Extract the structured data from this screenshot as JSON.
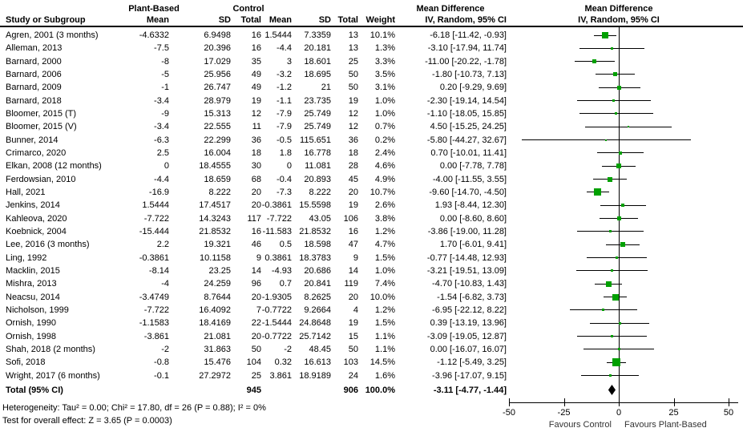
{
  "figure": {
    "header": {
      "group1": "Plant-Based",
      "group2": "Control",
      "study_col": "Study or Subgroup",
      "mean_col": "Mean",
      "sd_col": "SD",
      "total_col": "Total",
      "weight_col": "Weight",
      "effect_title": "Mean Difference",
      "effect_method": "IV, Random, 95% CI"
    }
  },
  "chart_data": {
    "type": "forest",
    "effect_measure": "Mean Difference",
    "model": "IV, Random, 95% CI",
    "colors": {
      "marker": "#00a000",
      "summary": "#000000",
      "line": "#000000"
    },
    "axis": {
      "xlim": [
        -50,
        50
      ],
      "ticks": [
        -50,
        -25,
        0,
        25,
        50
      ],
      "favours_left": "Favours Control",
      "favours_right": "Favours Plant-Based"
    },
    "studies": [
      {
        "name": "Agren, 2001 (3 months)",
        "mean1": "-4.6332",
        "sd1": "6.9498",
        "n1": "16",
        "mean2": "1.5444",
        "sd2": "7.3359",
        "n2": "13",
        "weight": "10.1%",
        "ci": "-6.18 [-11.42, -0.93]",
        "est": -6.18,
        "lo": -11.42,
        "hi": -0.93
      },
      {
        "name": "Alleman, 2013",
        "mean1": "-7.5",
        "sd1": "20.396",
        "n1": "16",
        "mean2": "-4.4",
        "sd2": "20.181",
        "n2": "13",
        "weight": "1.3%",
        "ci": "-3.10 [-17.94, 11.74]",
        "est": -3.1,
        "lo": -17.94,
        "hi": 11.74
      },
      {
        "name": "Barnard, 2000",
        "mean1": "-8",
        "sd1": "17.029",
        "n1": "35",
        "mean2": "3",
        "sd2": "18.601",
        "n2": "25",
        "weight": "3.3%",
        "ci": "-11.00 [-20.22, -1.78]",
        "est": -11.0,
        "lo": -20.22,
        "hi": -1.78
      },
      {
        "name": "Barnard, 2006",
        "mean1": "-5",
        "sd1": "25.956",
        "n1": "49",
        "mean2": "-3.2",
        "sd2": "18.695",
        "n2": "50",
        "weight": "3.5%",
        "ci": "-1.80 [-10.73, 7.13]",
        "est": -1.8,
        "lo": -10.73,
        "hi": 7.13
      },
      {
        "name": "Barnard, 2009",
        "mean1": "-1",
        "sd1": "26.747",
        "n1": "49",
        "mean2": "-1.2",
        "sd2": "21",
        "n2": "50",
        "weight": "3.1%",
        "ci": "0.20 [-9.29, 9.69]",
        "est": 0.2,
        "lo": -9.29,
        "hi": 9.69
      },
      {
        "name": "Barnard, 2018",
        "mean1": "-3.4",
        "sd1": "28.979",
        "n1": "19",
        "mean2": "-1.1",
        "sd2": "23.735",
        "n2": "19",
        "weight": "1.0%",
        "ci": "-2.30 [-19.14, 14.54]",
        "est": -2.3,
        "lo": -19.14,
        "hi": 14.54
      },
      {
        "name": "Bloomer, 2015 (T)",
        "mean1": "-9",
        "sd1": "15.313",
        "n1": "12",
        "mean2": "-7.9",
        "sd2": "25.749",
        "n2": "12",
        "weight": "1.0%",
        "ci": "-1.10 [-18.05, 15.85]",
        "est": -1.1,
        "lo": -18.05,
        "hi": 15.85
      },
      {
        "name": "Bloomer, 2015 (V)",
        "mean1": "-3.4",
        "sd1": "22.555",
        "n1": "11",
        "mean2": "-7.9",
        "sd2": "25.749",
        "n2": "12",
        "weight": "0.7%",
        "ci": "4.50 [-15.25, 24.25]",
        "est": 4.5,
        "lo": -15.25,
        "hi": 24.25
      },
      {
        "name": "Bunner, 2014",
        "mean1": "-6.3",
        "sd1": "22.299",
        "n1": "36",
        "mean2": "-0.5",
        "sd2": "115.651",
        "n2": "36",
        "weight": "0.2%",
        "ci": "-5.80 [-44.27, 32.67]",
        "est": -5.8,
        "lo": -44.27,
        "hi": 32.67
      },
      {
        "name": "Crimarco, 2020",
        "mean1": "2.5",
        "sd1": "16.004",
        "n1": "18",
        "mean2": "1.8",
        "sd2": "16.778",
        "n2": "18",
        "weight": "2.4%",
        "ci": "0.70 [-10.01, 11.41]",
        "est": 0.7,
        "lo": -10.01,
        "hi": 11.41
      },
      {
        "name": "Elkan, 2008 (12 months)",
        "mean1": "0",
        "sd1": "18.4555",
        "n1": "30",
        "mean2": "0",
        "sd2": "11.081",
        "n2": "28",
        "weight": "4.6%",
        "ci": "0.00 [-7.78, 7.78]",
        "est": 0.0,
        "lo": -7.78,
        "hi": 7.78
      },
      {
        "name": "Ferdowsian, 2010",
        "mean1": "-4.4",
        "sd1": "18.659",
        "n1": "68",
        "mean2": "-0.4",
        "sd2": "20.893",
        "n2": "45",
        "weight": "4.9%",
        "ci": "-4.00 [-11.55, 3.55]",
        "est": -4.0,
        "lo": -11.55,
        "hi": 3.55
      },
      {
        "name": "Hall, 2021",
        "mean1": "-16.9",
        "sd1": "8.222",
        "n1": "20",
        "mean2": "-7.3",
        "sd2": "8.222",
        "n2": "20",
        "weight": "10.7%",
        "ci": "-9.60 [-14.70, -4.50]",
        "est": -9.6,
        "lo": -14.7,
        "hi": -4.5
      },
      {
        "name": "Jenkins, 2014",
        "mean1": "1.5444",
        "sd1": "17.4517",
        "n1": "20",
        "mean2": "-0.3861",
        "sd2": "15.5598",
        "n2": "19",
        "weight": "2.6%",
        "ci": "1.93 [-8.44, 12.30]",
        "est": 1.93,
        "lo": -8.44,
        "hi": 12.3
      },
      {
        "name": "Kahleova, 2020",
        "mean1": "-7.722",
        "sd1": "14.3243",
        "n1": "117",
        "mean2": "-7.722",
        "sd2": "43.05",
        "n2": "106",
        "weight": "3.8%",
        "ci": "0.00 [-8.60, 8.60]",
        "est": 0.0,
        "lo": -8.6,
        "hi": 8.6
      },
      {
        "name": "Koebnick, 2004",
        "mean1": "-15.444",
        "sd1": "21.8532",
        "n1": "16",
        "mean2": "-11.583",
        "sd2": "21.8532",
        "n2": "16",
        "weight": "1.2%",
        "ci": "-3.86 [-19.00, 11.28]",
        "est": -3.86,
        "lo": -19.0,
        "hi": 11.28
      },
      {
        "name": "Lee, 2016 (3 months)",
        "mean1": "2.2",
        "sd1": "19.321",
        "n1": "46",
        "mean2": "0.5",
        "sd2": "18.598",
        "n2": "47",
        "weight": "4.7%",
        "ci": "1.70 [-6.01, 9.41]",
        "est": 1.7,
        "lo": -6.01,
        "hi": 9.41
      },
      {
        "name": "Ling, 1992",
        "mean1": "-0.3861",
        "sd1": "10.1158",
        "n1": "9",
        "mean2": "0.3861",
        "sd2": "18.3783",
        "n2": "9",
        "weight": "1.5%",
        "ci": "-0.77 [-14.48, 12.93]",
        "est": -0.77,
        "lo": -14.48,
        "hi": 12.93
      },
      {
        "name": "Macklin, 2015",
        "mean1": "-8.14",
        "sd1": "23.25",
        "n1": "14",
        "mean2": "-4.93",
        "sd2": "20.686",
        "n2": "14",
        "weight": "1.0%",
        "ci": "-3.21 [-19.51, 13.09]",
        "est": -3.21,
        "lo": -19.51,
        "hi": 13.09
      },
      {
        "name": "Mishra, 2013",
        "mean1": "-4",
        "sd1": "24.259",
        "n1": "96",
        "mean2": "0.7",
        "sd2": "20.841",
        "n2": "119",
        "weight": "7.4%",
        "ci": "-4.70 [-10.83, 1.43]",
        "est": -4.7,
        "lo": -10.83,
        "hi": 1.43
      },
      {
        "name": "Neacsu, 2014",
        "mean1": "-3.4749",
        "sd1": "8.7644",
        "n1": "20",
        "mean2": "-1.9305",
        "sd2": "8.2625",
        "n2": "20",
        "weight": "10.0%",
        "ci": "-1.54 [-6.82, 3.73]",
        "est": -1.54,
        "lo": -6.82,
        "hi": 3.73
      },
      {
        "name": "Nicholson, 1999",
        "mean1": "-7.722",
        "sd1": "16.4092",
        "n1": "7",
        "mean2": "-0.7722",
        "sd2": "9.2664",
        "n2": "4",
        "weight": "1.2%",
        "ci": "-6.95 [-22.12, 8.22]",
        "est": -6.95,
        "lo": -22.12,
        "hi": 8.22
      },
      {
        "name": "Ornish, 1990",
        "mean1": "-1.1583",
        "sd1": "18.4169",
        "n1": "22",
        "mean2": "-1.5444",
        "sd2": "24.8648",
        "n2": "19",
        "weight": "1.5%",
        "ci": "0.39 [-13.19, 13.96]",
        "est": 0.39,
        "lo": -13.19,
        "hi": 13.96
      },
      {
        "name": "Ornish, 1998",
        "mean1": "-3.861",
        "sd1": "21.081",
        "n1": "20",
        "mean2": "-0.7722",
        "sd2": "25.7142",
        "n2": "15",
        "weight": "1.1%",
        "ci": "-3.09 [-19.05, 12.87]",
        "est": -3.09,
        "lo": -19.05,
        "hi": 12.87
      },
      {
        "name": "Shah, 2018 (2 months)",
        "mean1": "-2",
        "sd1": "31.863",
        "n1": "50",
        "mean2": "-2",
        "sd2": "48.45",
        "n2": "50",
        "weight": "1.1%",
        "ci": "0.00 [-16.07, 16.07]",
        "est": 0.0,
        "lo": -16.07,
        "hi": 16.07
      },
      {
        "name": "Sofi, 2018",
        "mean1": "-0.8",
        "sd1": "15.476",
        "n1": "104",
        "mean2": "0.32",
        "sd2": "16.613",
        "n2": "103",
        "weight": "14.5%",
        "ci": "-1.12 [-5.49, 3.25]",
        "est": -1.12,
        "lo": -5.49,
        "hi": 3.25
      },
      {
        "name": "Wright, 2017 (6 months)",
        "mean1": "-0.1",
        "sd1": "27.2972",
        "n1": "25",
        "mean2": "3.861",
        "sd2": "18.9189",
        "n2": "24",
        "weight": "1.6%",
        "ci": "-3.96 [-17.07, 9.15]",
        "est": -3.96,
        "lo": -17.07,
        "hi": 9.15
      }
    ],
    "total": {
      "label": "Total (95% CI)",
      "n1": "945",
      "n2": "906",
      "weight": "100.0%",
      "ci": "-3.11 [-4.77, -1.44]",
      "est": -3.11,
      "lo": -4.77,
      "hi": -1.44
    },
    "heterogeneity": "Heterogeneity: Tau² = 0.00; Chi² = 17.80, df = 26 (P = 0.88); I² = 0%",
    "overall_effect": "Test for overall effect: Z = 3.65 (P = 0.0003)"
  }
}
